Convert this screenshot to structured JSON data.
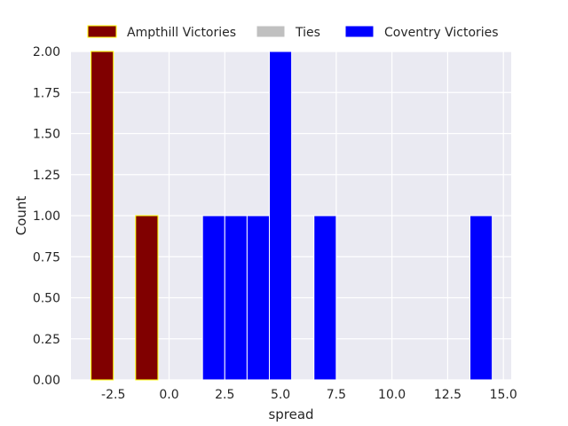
{
  "chart_data": {
    "type": "bar",
    "xlabel": "spread",
    "ylabel": "Count",
    "xlim": [
      -4.4,
      15.35
    ],
    "ylim": [
      0,
      2.0
    ],
    "xticks": [
      "-2.5",
      "0.0",
      "2.5",
      "5.0",
      "7.5",
      "10.0",
      "12.5",
      "15.0"
    ],
    "yticks": [
      "0.00",
      "0.25",
      "0.50",
      "0.75",
      "1.00",
      "1.25",
      "1.50",
      "1.75",
      "2.00"
    ],
    "grid": true,
    "legend": "top-center",
    "bin_width": 1.0,
    "series": [
      {
        "name": "Ampthill Victories",
        "color": "#800000",
        "edge_color": "#ffff00",
        "bins": [
          {
            "x0": -3.5,
            "x1": -2.5,
            "count": 2
          },
          {
            "x0": -1.5,
            "x1": -0.5,
            "count": 1
          }
        ]
      },
      {
        "name": "Ties",
        "color": "#c0c0c0",
        "edge_color": "#ffffff",
        "bins": []
      },
      {
        "name": "Coventry Victories",
        "color": "#0000ff",
        "edge_color": "#ffffff",
        "bins": [
          {
            "x0": 1.5,
            "x1": 2.5,
            "count": 1
          },
          {
            "x0": 2.5,
            "x1": 3.5,
            "count": 1
          },
          {
            "x0": 3.5,
            "x1": 4.5,
            "count": 1
          },
          {
            "x0": 4.5,
            "x1": 5.5,
            "count": 2
          },
          {
            "x0": 6.5,
            "x1": 7.5,
            "count": 1
          },
          {
            "x0": 13.5,
            "x1": 14.5,
            "count": 1
          }
        ]
      }
    ]
  }
}
